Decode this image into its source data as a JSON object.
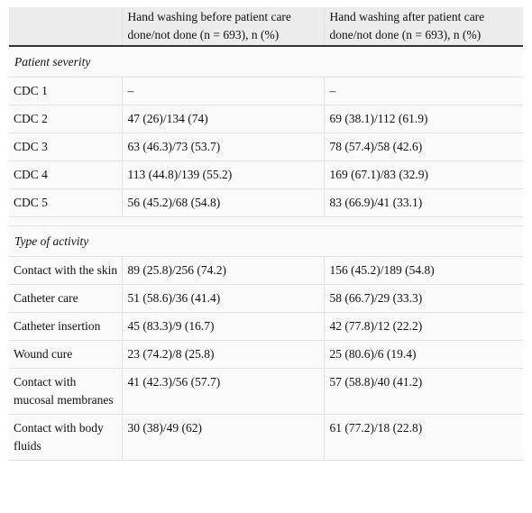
{
  "table": {
    "header": [
      "Hand washing before patient care done/not done (n = 693), n (%)",
      "Hand washing after patient care done/not done (n = 693), n (%)"
    ],
    "sections": [
      {
        "title": "Patient severity",
        "rows": [
          [
            "CDC 1",
            "–",
            "–"
          ],
          [
            "CDC 2",
            "47 (26)/134 (74)",
            "69 (38.1)/112 (61.9)"
          ],
          [
            "CDC 3",
            "63 (46.3)/73 (53.7)",
            "78 (57.4)/58 (42.6)"
          ],
          [
            "CDC 4",
            "113 (44.8)/139 (55.2)",
            "169 (67.1)/83 (32.9)"
          ],
          [
            "CDC 5",
            "56 (45.2)/68 (54.8)",
            "83 (66.9)/41 (33.1)"
          ]
        ]
      },
      {
        "title": "Type of activity",
        "rows": [
          [
            "Contact with the skin",
            "89 (25.8)/256 (74.2)",
            "156 (45.2)/189 (54.8)"
          ],
          [
            "Catheter care",
            "51 (58.6)/36 (41.4)",
            "58 (66.7)/29 (33.3)"
          ],
          [
            "Catheter insertion",
            "45 (83.3)/9 (16.7)",
            "42 (77.8)/12 (22.2)"
          ],
          [
            "Wound cure",
            "23 (74.2)/8 (25.8)",
            "25 (80.6)/6 (19.4)"
          ],
          [
            "Contact with mucosal membranes",
            "41 (42.3)/56 (57.7)",
            "57 (58.8)/40 (41.2)"
          ],
          [
            "Contact with body fluids",
            "30 (38)/49 (62)",
            "61 (77.2)/18 (22.8)"
          ]
        ]
      }
    ]
  }
}
